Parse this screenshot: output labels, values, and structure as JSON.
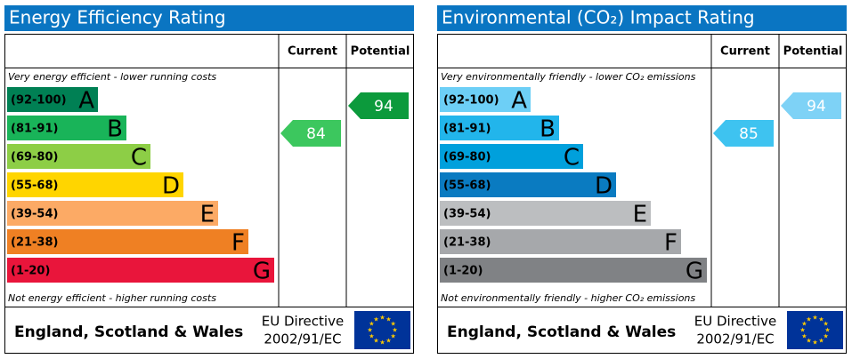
{
  "chart_data": [
    {
      "type": "epc",
      "title": "Energy Efficiency Rating",
      "columns": [
        "Current",
        "Potential"
      ],
      "top_note": "Very energy efficient - lower running costs",
      "bottom_note": "Not energy efficient - higher running costs",
      "bands": [
        {
          "range": "(92-100)",
          "letter": "A",
          "color": "#008054"
        },
        {
          "range": "(81-91)",
          "letter": "B",
          "color": "#19b459"
        },
        {
          "range": "(69-80)",
          "letter": "C",
          "color": "#8dce46"
        },
        {
          "range": "(55-68)",
          "letter": "D",
          "color": "#ffd500"
        },
        {
          "range": "(39-54)",
          "letter": "E",
          "color": "#fcaa65"
        },
        {
          "range": "(21-38)",
          "letter": "F",
          "color": "#ef8023"
        },
        {
          "range": "(1-20)",
          "letter": "G",
          "color": "#e9153b"
        }
      ],
      "current": 84,
      "current_color": "#3cc75e",
      "potential": 94,
      "potential_color": "#0c9a3c",
      "footer": "England, Scotland & Wales",
      "directive": [
        "EU Directive",
        "2002/91/EC"
      ]
    },
    {
      "type": "epc",
      "title": "Environmental (CO₂) Impact Rating",
      "columns": [
        "Current",
        "Potential"
      ],
      "top_note": "Very environmentally friendly - lower CO₂ emissions",
      "bottom_note": "Not environmentally friendly - higher CO₂ emissions",
      "bands": [
        {
          "range": "(92-100)",
          "letter": "A",
          "color": "#6dcff6"
        },
        {
          "range": "(81-91)",
          "letter": "B",
          "color": "#22b5eb"
        },
        {
          "range": "(69-80)",
          "letter": "C",
          "color": "#00a0dc"
        },
        {
          "range": "(55-68)",
          "letter": "D",
          "color": "#0a7bc1"
        },
        {
          "range": "(39-54)",
          "letter": "E",
          "color": "#bcbec0"
        },
        {
          "range": "(21-38)",
          "letter": "F",
          "color": "#a6a8ab"
        },
        {
          "range": "(1-20)",
          "letter": "G",
          "color": "#808285"
        }
      ],
      "current": 85,
      "current_color": "#3ec3f0",
      "potential": 94,
      "potential_color": "#7ed2f6",
      "footer": "England, Scotland & Wales",
      "directive": [
        "EU Directive",
        "2002/91/EC"
      ]
    }
  ]
}
